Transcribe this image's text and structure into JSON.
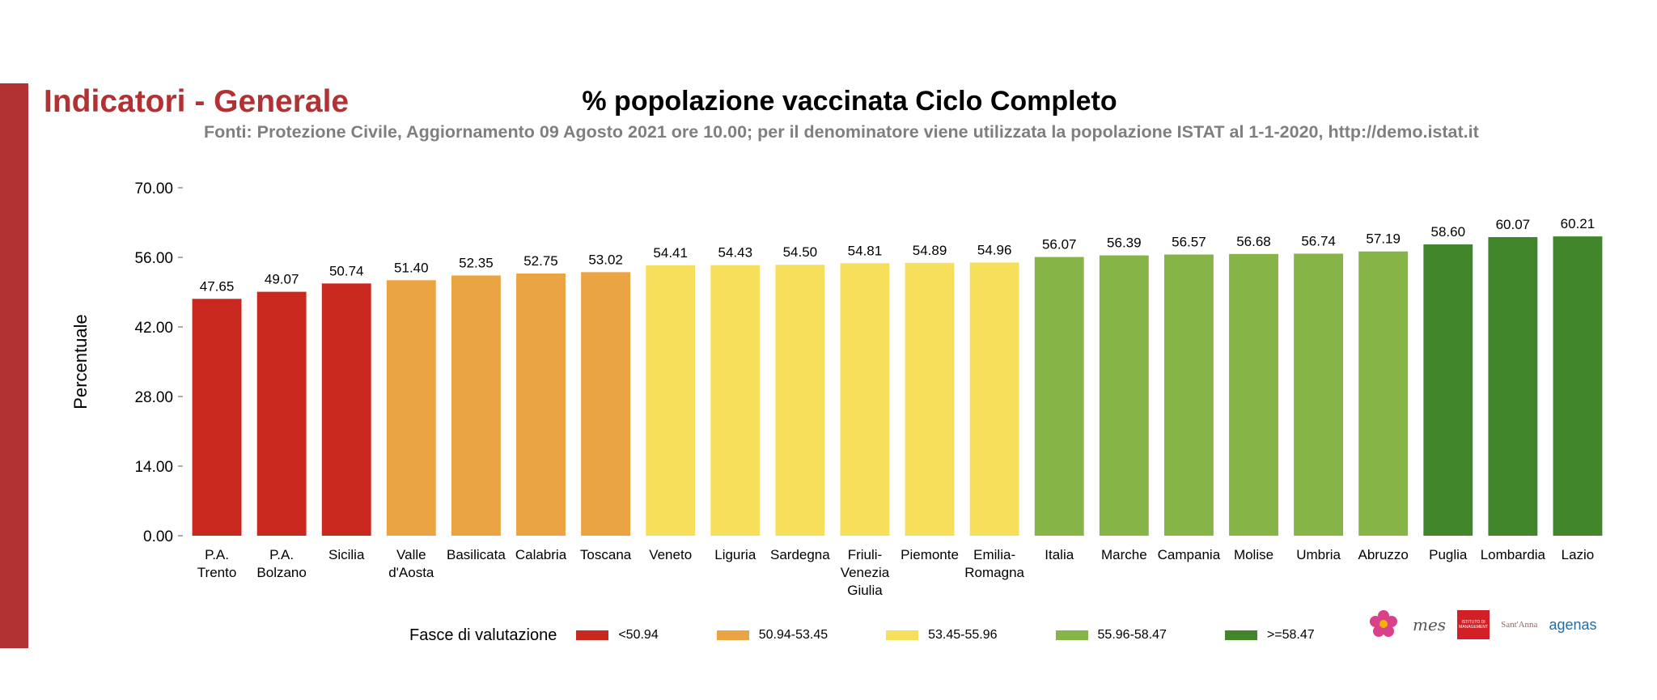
{
  "header": {
    "section_title": "Indicatori - Generale",
    "chart_title": "% popolazione vaccinata Ciclo Completo",
    "subtitle": "Fonti: Protezione Civile, Aggiornamento 09 Agosto 2021 ore 10.00; per il denominatore viene utilizzata la popolazione ISTAT al 1-1-2020, http://demo.istat.it"
  },
  "colors": {
    "accent": "#b23234",
    "band_1": "#c9281e",
    "band_2": "#eba444",
    "band_3": "#f6df5a",
    "band_4": "#86b446",
    "band_5": "#42862c"
  },
  "chart_data": {
    "type": "bar",
    "title": "% popolazione vaccinata Ciclo Completo",
    "ylabel": "Percentuale",
    "xlabel": "",
    "ylim": [
      0,
      70
    ],
    "yticks": [
      "0.00",
      "14.00",
      "28.00",
      "42.00",
      "56.00",
      "70.00"
    ],
    "grid": false,
    "categories": [
      [
        "P.A.",
        "Trento"
      ],
      [
        "P.A.",
        "Bolzano"
      ],
      [
        "Sicilia"
      ],
      [
        "Valle",
        "d'Aosta"
      ],
      [
        "Basilicata"
      ],
      [
        "Calabria"
      ],
      [
        "Toscana"
      ],
      [
        "Veneto"
      ],
      [
        "Liguria"
      ],
      [
        "Sardegna"
      ],
      [
        "Friuli-",
        "Venezia",
        "Giulia"
      ],
      [
        "Piemonte"
      ],
      [
        "Emilia-",
        "Romagna"
      ],
      [
        "Italia"
      ],
      [
        "Marche"
      ],
      [
        "Campania"
      ],
      [
        "Molise"
      ],
      [
        "Umbria"
      ],
      [
        "Abruzzo"
      ],
      [
        "Puglia"
      ],
      [
        "Lombardia"
      ],
      [
        "Lazio"
      ]
    ],
    "values": [
      47.65,
      49.07,
      50.74,
      51.4,
      52.35,
      52.75,
      53.02,
      54.41,
      54.43,
      54.5,
      54.81,
      54.89,
      54.96,
      56.07,
      56.39,
      56.57,
      56.68,
      56.74,
      57.19,
      58.6,
      60.07,
      60.21
    ],
    "value_labels": [
      "47.65",
      "49.07",
      "50.74",
      "51.40",
      "52.35",
      "52.75",
      "53.02",
      "54.41",
      "54.43",
      "54.50",
      "54.81",
      "54.89",
      "54.96",
      "56.07",
      "56.39",
      "56.57",
      "56.68",
      "56.74",
      "57.19",
      "58.60",
      "60.07",
      "60.21"
    ],
    "bands": [
      1,
      1,
      1,
      2,
      2,
      2,
      2,
      3,
      3,
      3,
      3,
      3,
      3,
      4,
      4,
      4,
      4,
      4,
      4,
      5,
      5,
      5
    ],
    "legend": {
      "title": "Fasce di valutazione",
      "placement": "bottom",
      "items": [
        {
          "label": "<50.94",
          "color": "#c9281e"
        },
        {
          "label": "50.94-53.45",
          "color": "#eba444"
        },
        {
          "label": "53.45-55.96",
          "color": "#f6df5a"
        },
        {
          "label": "55.96-58.47",
          "color": "#86b446"
        },
        {
          "label": ">=58.47",
          "color": "#42862c"
        }
      ]
    }
  },
  "logos": [
    {
      "name": "flower-logo-icon",
      "text": ""
    },
    {
      "name": "mes-logo-icon",
      "text": "mes"
    },
    {
      "name": "institute-logo-icon",
      "text": "ISTITUTO DI MANAGEMENT"
    },
    {
      "name": "santanna-logo-icon",
      "text": "Sant'Anna"
    },
    {
      "name": "agenas-logo-icon",
      "text": "agenas"
    }
  ]
}
